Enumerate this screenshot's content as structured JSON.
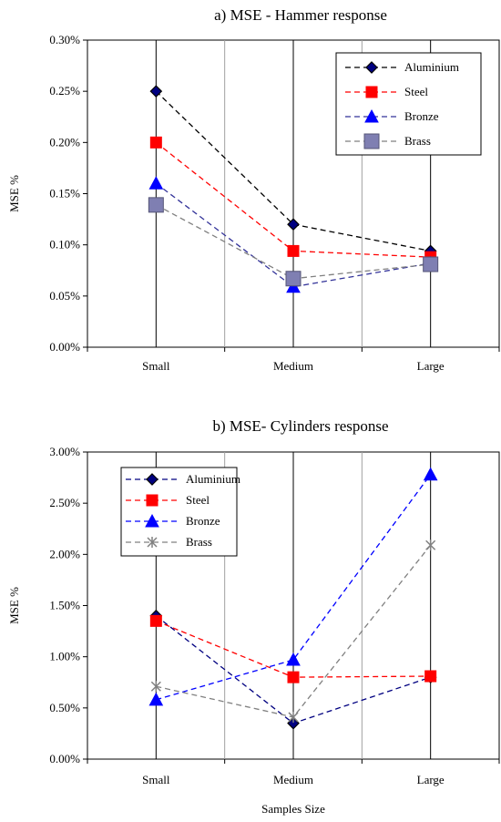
{
  "chart_data": [
    {
      "type": "line",
      "title": "a) MSE - Hammer response",
      "ylabel": "MSE %",
      "xlabel": "",
      "categories": [
        "Small",
        "Medium",
        "Large"
      ],
      "ylim": [
        0,
        0.3
      ],
      "yticks": [
        "0.00%",
        "0.05%",
        "0.10%",
        "0.15%",
        "0.20%",
        "0.25%",
        "0.30%"
      ],
      "grid": "vertical",
      "legend": "top-right",
      "series": [
        {
          "name": "Aluminium",
          "values": [
            0.25,
            0.12,
            0.094
          ],
          "color": "#000000",
          "marker": "diamond",
          "marker_fill": "#000080"
        },
        {
          "name": "Steel",
          "values": [
            0.2,
            0.094,
            0.088
          ],
          "color": "#ff0000",
          "marker": "square",
          "marker_fill": "#ff0000"
        },
        {
          "name": "Bronze",
          "values": [
            0.16,
            0.059,
            0.082
          ],
          "color": "#333399",
          "marker": "triangle",
          "marker_fill": "#0000ff"
        },
        {
          "name": "Brass",
          "values": [
            0.139,
            0.067,
            0.081
          ],
          "color": "#808080",
          "marker": "big-square",
          "marker_fill": "#7f7fb2"
        }
      ]
    },
    {
      "type": "line",
      "title": "b) MSE- Cylinders response",
      "ylabel": "MSE %",
      "xlabel": "Samples Size",
      "categories": [
        "Small",
        "Medium",
        "Large"
      ],
      "ylim": [
        0,
        3.0
      ],
      "yticks": [
        "0.00%",
        "0.50%",
        "1.00%",
        "1.50%",
        "2.00%",
        "2.50%",
        "3.00%"
      ],
      "grid": "vertical",
      "legend": "top-left",
      "series": [
        {
          "name": "Aluminium",
          "values": [
            1.4,
            0.35,
            0.8
          ],
          "color": "#000080",
          "marker": "diamond",
          "marker_fill": "#000080"
        },
        {
          "name": "Steel",
          "values": [
            1.35,
            0.8,
            0.81
          ],
          "color": "#ff0000",
          "marker": "square",
          "marker_fill": "#ff0000"
        },
        {
          "name": "Bronze",
          "values": [
            0.58,
            0.97,
            2.78
          ],
          "color": "#0000ff",
          "marker": "triangle",
          "marker_fill": "#0000ff"
        },
        {
          "name": "Brass",
          "values": [
            0.71,
            0.41,
            2.09
          ],
          "color": "#808080",
          "marker": "cross",
          "marker_fill": "#808080"
        }
      ]
    }
  ]
}
